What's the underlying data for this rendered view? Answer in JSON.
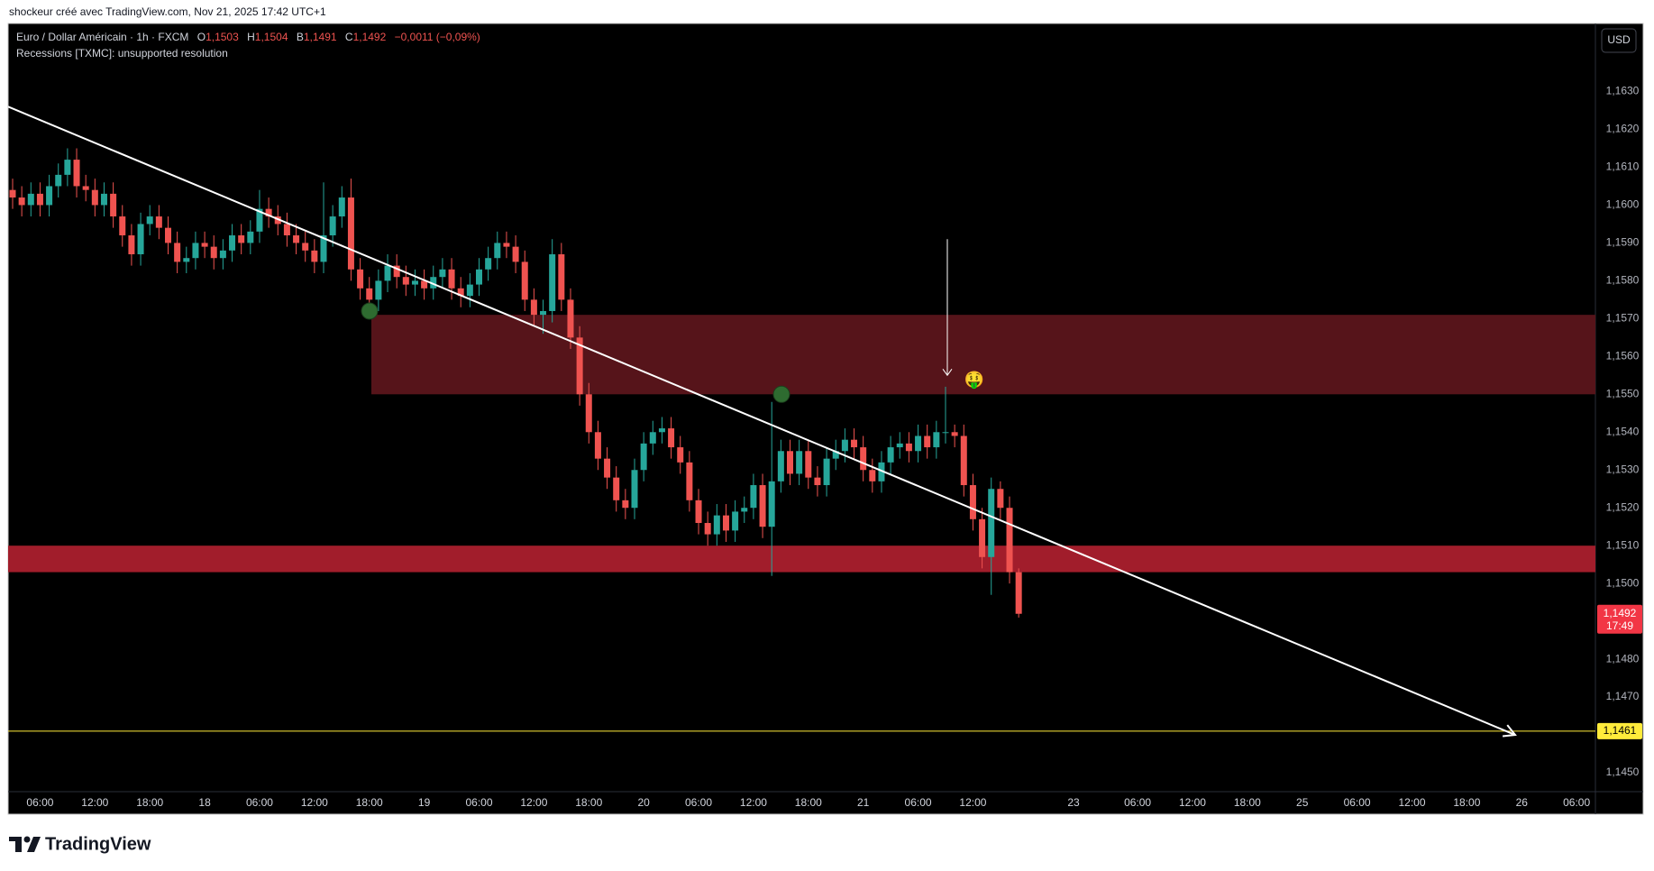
{
  "header": {
    "caption": "shockeur créé avec TradingView.com, Nov 21, 2025 17:42 UTC+1"
  },
  "chart_data": {
    "type": "candlestick",
    "title": "Euro / Dollar Américain · 1h · FXCM",
    "ohlc_legend": [
      {
        "label": "O",
        "value": "1,1503"
      },
      {
        "label": "H",
        "value": "1,1504"
      },
      {
        "label": "B",
        "value": "1,1491"
      },
      {
        "label": "C",
        "value": "1,1492"
      }
    ],
    "change": "−0,0011 (−0,09%)",
    "indicator": "Recessions [TXMC]: unsupported resolution",
    "currency": "USD",
    "categories": [
      null,
      null,
      null,
      "06:00",
      null,
      null,
      null,
      null,
      null,
      "12:00",
      null,
      null,
      null,
      null,
      null,
      "18:00",
      null,
      null,
      null,
      null,
      null,
      "18",
      null,
      null,
      null,
      null,
      null,
      "06:00",
      null,
      null,
      null,
      null,
      null,
      "12:00",
      null,
      null,
      null,
      null,
      null,
      "18:00",
      null,
      null,
      null,
      null,
      null,
      "19",
      null,
      null,
      null,
      null,
      null,
      "06:00",
      null,
      null,
      null,
      null,
      null,
      "12:00",
      null,
      null,
      null,
      null,
      null,
      "18:00",
      null,
      null,
      null,
      null,
      null,
      "20",
      null,
      null,
      null,
      null,
      null,
      "06:00",
      null,
      null,
      null,
      null,
      null,
      "12:00",
      null,
      null,
      null,
      null,
      null,
      "18:00",
      null,
      null,
      null,
      null,
      null,
      "21",
      null,
      null,
      null,
      null,
      null,
      "06:00",
      null,
      null,
      null,
      null,
      null,
      "12:00",
      null,
      null,
      null,
      null,
      null,
      null,
      null,
      null,
      null,
      null,
      "23",
      null,
      null,
      null,
      null,
      null,
      null,
      "06:00",
      null,
      null,
      null,
      null,
      null,
      "12:00",
      null,
      null,
      null,
      null,
      null,
      "18:00",
      null,
      null,
      null,
      null,
      null,
      "25",
      null,
      null,
      null,
      null,
      null,
      "06:00",
      null,
      null,
      null,
      null,
      null,
      "12:00",
      null,
      null,
      null,
      null,
      null,
      "18:00",
      null,
      null,
      null,
      null,
      null,
      "26",
      null,
      null,
      null,
      null,
      null,
      "06:00",
      null
    ],
    "open": [
      1.1604,
      1.1602,
      1.16,
      1.1603,
      1.16,
      1.1605,
      1.1608,
      1.1612,
      1.1605,
      1.1604,
      1.16,
      1.1603,
      1.1597,
      1.1592,
      1.1587,
      1.1595,
      1.1597,
      1.1594,
      1.159,
      1.1585,
      1.1586,
      1.159,
      1.1589,
      1.1586,
      1.1588,
      1.1592,
      1.159,
      1.1593,
      1.1599,
      1.1597,
      1.1595,
      1.1592,
      1.159,
      1.1588,
      1.1585,
      1.1592,
      1.1597,
      1.1602,
      1.1583,
      1.1578,
      1.1575,
      1.158,
      1.1584,
      1.1581,
      1.1579,
      1.158,
      1.1578,
      1.1581,
      1.1583,
      1.1578,
      1.1576,
      1.1579,
      1.1583,
      1.1586,
      1.159,
      1.1589,
      1.1585,
      1.1575,
      1.1571,
      1.1572,
      1.1587,
      1.1575,
      1.1565,
      1.155,
      1.154,
      1.1533,
      1.1528,
      1.1522,
      1.152,
      1.153,
      1.1537,
      1.154,
      1.1541,
      1.1536,
      1.1532,
      1.1522,
      1.1516,
      1.1513,
      1.1518,
      1.1514,
      1.1519,
      1.152,
      1.1526,
      1.1515,
      1.1527,
      1.1535,
      1.1529,
      1.1535,
      1.1528,
      1.1526,
      1.1533,
      1.1535,
      1.1538,
      1.1536,
      1.153,
      1.1527,
      1.1532,
      1.1536,
      1.1537,
      1.1535,
      1.1539,
      1.1536,
      1.154,
      1.154,
      1.1539,
      1.1526,
      1.1517,
      1.1507,
      1.1525,
      1.152,
      1.1503,
      null,
      null,
      null,
      null,
      null,
      null,
      null,
      null,
      null,
      null,
      null,
      null,
      null,
      null,
      null,
      null,
      null,
      null,
      null,
      null,
      null,
      null,
      null,
      null,
      null,
      null,
      null,
      null,
      null,
      null,
      null,
      null,
      null,
      null,
      null,
      null,
      null,
      null,
      null,
      null,
      null,
      null,
      null,
      null,
      null,
      null,
      null,
      null,
      null,
      null,
      null,
      null,
      null,
      null,
      null,
      null,
      null,
      null,
      null,
      null,
      null,
      null
    ],
    "high": [
      1.1607,
      1.1605,
      1.1606,
      1.1606,
      1.1608,
      1.1611,
      1.1615,
      1.1615,
      1.1608,
      1.1607,
      1.1606,
      1.1606,
      1.16,
      1.1595,
      1.1598,
      1.16,
      1.16,
      1.1597,
      1.1593,
      1.1589,
      1.1593,
      1.1593,
      1.1592,
      1.1591,
      1.1595,
      1.1595,
      1.1596,
      1.1604,
      1.1602,
      1.16,
      1.1598,
      1.1595,
      1.1593,
      1.1591,
      1.1606,
      1.16,
      1.1605,
      1.1607,
      1.1586,
      1.1581,
      1.1583,
      1.1587,
      1.1587,
      1.1584,
      1.1583,
      1.1583,
      1.1584,
      1.1586,
      1.1586,
      1.1581,
      1.1582,
      1.1586,
      1.1589,
      1.1593,
      1.1593,
      1.1592,
      1.1588,
      1.1578,
      1.1575,
      1.1591,
      1.159,
      1.1578,
      1.1568,
      1.1553,
      1.1543,
      1.1536,
      1.1531,
      1.1525,
      1.1533,
      1.154,
      1.1543,
      1.1544,
      1.1544,
      1.1539,
      1.1535,
      1.1525,
      1.1519,
      1.1521,
      1.1521,
      1.1522,
      1.1523,
      1.1529,
      1.1529,
      1.1548,
      1.1538,
      1.1538,
      1.1538,
      1.1538,
      1.1531,
      1.1536,
      1.1538,
      1.1541,
      1.1541,
      1.1539,
      1.1533,
      1.1535,
      1.1539,
      1.154,
      1.154,
      1.1542,
      1.1542,
      1.1543,
      1.1552,
      1.1542,
      1.1542,
      1.1529,
      1.152,
      1.1528,
      1.1527,
      1.1523,
      1.1504,
      null,
      null,
      null,
      null,
      null,
      null,
      null,
      null,
      null,
      null,
      null,
      null,
      null,
      null,
      null,
      null,
      null,
      null,
      null,
      null,
      null,
      null,
      null,
      null,
      null,
      null,
      null,
      null,
      null,
      null,
      null,
      null,
      null,
      null,
      null,
      null,
      null,
      null,
      null,
      null,
      null,
      null,
      null,
      null,
      null,
      null,
      null,
      null,
      null,
      null,
      null,
      null,
      null,
      null,
      null,
      null,
      null,
      null,
      null,
      null,
      null,
      null
    ],
    "low": [
      1.1599,
      1.1597,
      1.1597,
      1.1597,
      1.1597,
      1.1602,
      1.1605,
      1.1602,
      1.1601,
      1.1597,
      1.1597,
      1.1594,
      1.1589,
      1.1584,
      1.1584,
      1.1592,
      1.1591,
      1.1587,
      1.1582,
      1.1582,
      1.1583,
      1.1586,
      1.1583,
      1.1583,
      1.1585,
      1.1587,
      1.1587,
      1.159,
      1.1594,
      1.1592,
      1.1589,
      1.1587,
      1.1585,
      1.1582,
      1.1582,
      1.1589,
      1.1594,
      1.158,
      1.1575,
      1.1572,
      1.1572,
      1.1577,
      1.1578,
      1.1576,
      1.1576,
      1.1575,
      1.1575,
      1.1578,
      1.1575,
      1.1573,
      1.1573,
      1.1576,
      1.158,
      1.1583,
      1.1586,
      1.1582,
      1.1572,
      1.1568,
      1.1566,
      1.1569,
      1.1572,
      1.1562,
      1.1547,
      1.1537,
      1.153,
      1.1525,
      1.1519,
      1.1517,
      1.1517,
      1.1527,
      1.1534,
      1.1537,
      1.1533,
      1.1529,
      1.1519,
      1.1513,
      1.151,
      1.151,
      1.1511,
      1.1511,
      1.1516,
      1.1517,
      1.1512,
      1.1502,
      1.1524,
      1.1526,
      1.1526,
      1.1525,
      1.1523,
      1.1523,
      1.153,
      1.1532,
      1.1533,
      1.1527,
      1.1524,
      1.1524,
      1.1529,
      1.1533,
      1.1532,
      1.1532,
      1.1533,
      1.1533,
      1.1537,
      1.1536,
      1.1523,
      1.1514,
      1.1504,
      1.1497,
      1.1517,
      1.15,
      1.1491,
      null,
      null,
      null,
      null,
      null,
      null,
      null,
      null,
      null,
      null,
      null,
      null,
      null,
      null,
      null,
      null,
      null,
      null,
      null,
      null,
      null,
      null,
      null,
      null,
      null,
      null,
      null,
      null,
      null,
      null,
      null,
      null,
      null,
      null,
      null,
      null,
      null,
      null,
      null,
      null,
      null,
      null,
      null,
      null,
      null,
      null,
      null,
      null,
      null,
      null,
      null,
      null,
      null,
      null,
      null,
      null,
      null,
      null,
      null,
      null,
      null,
      null
    ],
    "close": [
      1.1602,
      1.16,
      1.1603,
      1.16,
      1.1605,
      1.1608,
      1.1612,
      1.1605,
      1.1604,
      1.16,
      1.1603,
      1.1597,
      1.1592,
      1.1587,
      1.1595,
      1.1597,
      1.1594,
      1.159,
      1.1585,
      1.1586,
      1.159,
      1.1589,
      1.1586,
      1.1588,
      1.1592,
      1.159,
      1.1593,
      1.1599,
      1.1597,
      1.1595,
      1.1592,
      1.159,
      1.1588,
      1.1585,
      1.1592,
      1.1597,
      1.1602,
      1.1583,
      1.1578,
      1.1575,
      1.158,
      1.1584,
      1.1581,
      1.1579,
      1.158,
      1.1578,
      1.1581,
      1.1583,
      1.1578,
      1.1576,
      1.1579,
      1.1583,
      1.1586,
      1.159,
      1.1589,
      1.1585,
      1.1575,
      1.1571,
      1.1572,
      1.1587,
      1.1575,
      1.1565,
      1.155,
      1.154,
      1.1533,
      1.1528,
      1.1522,
      1.152,
      1.153,
      1.1537,
      1.154,
      1.1541,
      1.1536,
      1.1532,
      1.1522,
      1.1516,
      1.1513,
      1.1518,
      1.1514,
      1.1519,
      1.152,
      1.1526,
      1.1515,
      1.1527,
      1.1535,
      1.1529,
      1.1535,
      1.1528,
      1.1526,
      1.1533,
      1.1535,
      1.1538,
      1.1536,
      1.153,
      1.1527,
      1.1532,
      1.1536,
      1.1537,
      1.1535,
      1.1539,
      1.1536,
      1.154,
      1.154,
      1.1539,
      1.1526,
      1.1517,
      1.1507,
      1.1525,
      1.152,
      1.1503,
      1.1492,
      null,
      null,
      null,
      null,
      null,
      null,
      null,
      null,
      null,
      null,
      null,
      null,
      null,
      null,
      null,
      null,
      null,
      null,
      null,
      null,
      null,
      null,
      null,
      null,
      null,
      null,
      null,
      null,
      null,
      null,
      null,
      null,
      null,
      null,
      null,
      null,
      null,
      null,
      null,
      null,
      null,
      null,
      null,
      null,
      null,
      null,
      null,
      null,
      null,
      null,
      null,
      null,
      null,
      null,
      null,
      null,
      null,
      null,
      null,
      null,
      null,
      null
    ],
    "up_color": "#26a69a",
    "down_color": "#ef5350",
    "ylim": [
      1.1445,
      1.1648
    ],
    "yticks": [
      {
        "value": 1.145,
        "label": "1,1450"
      },
      {
        "value": 1.146,
        "label": "1,1460"
      },
      {
        "value": 1.147,
        "label": "1,1470"
      },
      {
        "value": 1.148,
        "label": "1,1480"
      },
      {
        "value": 1.149,
        "label": "1,1490"
      },
      {
        "value": 1.15,
        "label": "1,1500"
      },
      {
        "value": 1.151,
        "label": "1,1510"
      },
      {
        "value": 1.152,
        "label": "1,1520"
      },
      {
        "value": 1.153,
        "label": "1,1530"
      },
      {
        "value": 1.154,
        "label": "1,1540"
      },
      {
        "value": 1.155,
        "label": "1,1550"
      },
      {
        "value": 1.156,
        "label": "1,1560"
      },
      {
        "value": 1.157,
        "label": "1,1570"
      },
      {
        "value": 1.158,
        "label": "1,1580"
      },
      {
        "value": 1.159,
        "label": "1,1590"
      },
      {
        "value": 1.16,
        "label": "1,1600"
      },
      {
        "value": 1.161,
        "label": "1,1610"
      },
      {
        "value": 1.162,
        "label": "1,1620"
      },
      {
        "value": 1.163,
        "label": "1,1630"
      }
    ],
    "grid": false,
    "zones": [
      {
        "top": 1.1571,
        "bottom": 1.155,
        "color": "#56141a"
      },
      {
        "top": 1.151,
        "bottom": 1.1503,
        "color": "#a11d2b"
      }
    ],
    "trendline": {
      "from": 1.1626,
      "to": 1.146,
      "color": "#ffffff"
    },
    "level": {
      "value": 1.1461,
      "label": "1,1461",
      "color": "#ffeb3b"
    },
    "last_price": {
      "value": 1.1492,
      "label": "1,1492",
      "countdown": "17:49",
      "color": "#f23645"
    },
    "signals": [
      1.1572,
      1.155
    ],
    "arrow": [
      1.1591,
      1.1555
    ],
    "emoji": "🤑"
  },
  "footer": {
    "logo": "TradingView"
  }
}
